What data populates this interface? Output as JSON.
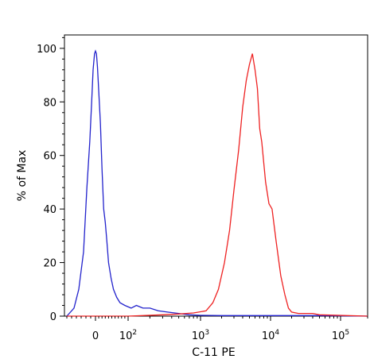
{
  "chart_data": {
    "type": "line",
    "title": "",
    "xlabel": "C-11 PE",
    "ylabel": "% of Max",
    "x_scale": "biexponential",
    "xlim": [
      -60,
      200000
    ],
    "ylim": [
      0,
      105
    ],
    "y_ticks": [
      "0",
      "20",
      "40",
      "60",
      "80",
      "100"
    ],
    "x_ticks": [
      {
        "label": "0",
        "value": 0,
        "exp": ""
      },
      {
        "label": "10",
        "value": 100,
        "exp": "2"
      },
      {
        "label": "10",
        "value": 1000,
        "exp": "3"
      },
      {
        "label": "10",
        "value": 10000,
        "exp": "4"
      },
      {
        "label": "10",
        "value": 100000,
        "exp": "5"
      }
    ],
    "grid": false,
    "legend": "none",
    "series": [
      {
        "color": "#2222cc",
        "x": [
          -60,
          -45,
          -35,
          -25,
          -18,
          -12,
          -8,
          -5,
          -2,
          0,
          3,
          6,
          10,
          15,
          20,
          25,
          30,
          35,
          40,
          48,
          55,
          65,
          75,
          90,
          110,
          130,
          160,
          200,
          260,
          350,
          500,
          700,
          1000,
          2000,
          5000,
          10000,
          50000,
          200000
        ],
        "y": [
          0,
          3,
          10,
          24,
          48,
          65,
          80,
          92,
          98,
          99,
          98,
          93,
          84,
          72,
          55,
          40,
          35,
          28,
          20,
          14,
          10,
          7,
          5,
          4,
          3,
          4,
          3,
          3,
          2,
          1.5,
          1,
          0.5,
          0.3,
          0.2,
          0.2,
          0.2,
          0.2,
          0
        ]
      },
      {
        "color": "#ee2222",
        "x": [
          -60,
          100,
          300,
          500,
          800,
          1200,
          1500,
          1800,
          2200,
          2600,
          3000,
          3500,
          4000,
          4500,
          5000,
          5500,
          6000,
          6500,
          7000,
          7500,
          8500,
          9500,
          10500,
          12000,
          14000,
          16000,
          18000,
          20000,
          25000,
          40000,
          50000,
          200000
        ],
        "y": [
          0,
          0,
          0.5,
          0.8,
          1.2,
          2,
          5,
          10,
          20,
          32,
          47,
          62,
          78,
          88,
          94,
          98,
          92,
          85,
          70,
          65,
          50,
          42,
          40,
          28,
          15,
          8,
          3,
          1.5,
          1,
          1,
          0.5,
          0
        ]
      }
    ]
  }
}
